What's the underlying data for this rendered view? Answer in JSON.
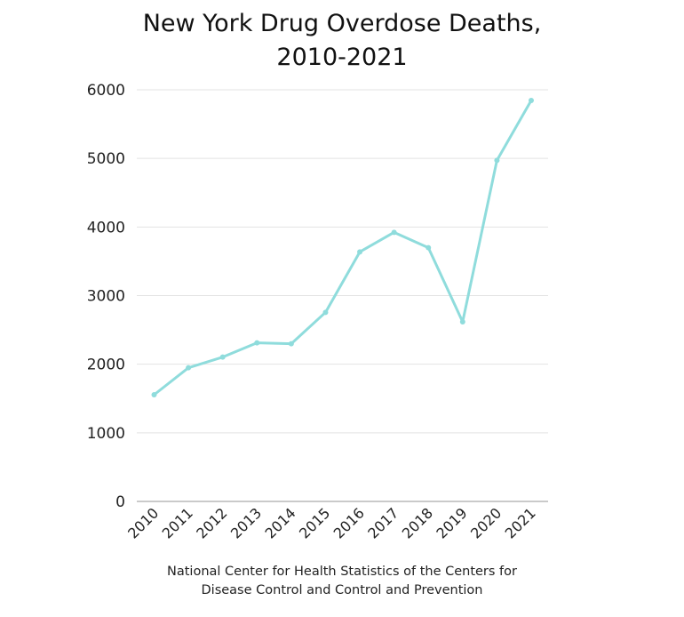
{
  "chart_data": {
    "type": "line",
    "title_line1": "New York Drug Overdose Deaths,",
    "title_line2": "2010-2021",
    "source_line1": "National Center for Health Statistics of the Centers for",
    "source_line2": "Disease Control and Control and Prevention",
    "xlabel": "",
    "ylabel": "",
    "categories": [
      "2010",
      "2011",
      "2012",
      "2013",
      "2014",
      "2015",
      "2016",
      "2017",
      "2018",
      "2019",
      "2020",
      "2021"
    ],
    "series": [
      {
        "name": "Drug Overdose Deaths",
        "values": [
          1555,
          1948,
          2104,
          2311,
          2298,
          2756,
          3637,
          3922,
          3698,
          2618,
          4972,
          5845
        ],
        "color": "#8fdcdc"
      }
    ],
    "yticks": [
      0,
      1000,
      2000,
      3000,
      4000,
      5000,
      6000
    ],
    "ylim": [
      0,
      6000
    ],
    "grid": true,
    "legend": "none"
  }
}
